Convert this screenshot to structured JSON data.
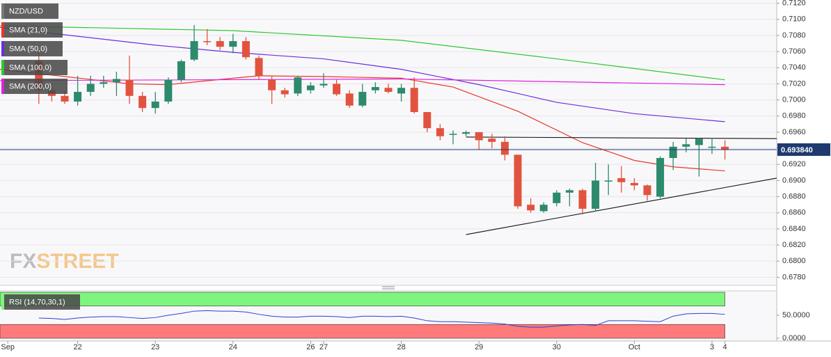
{
  "chart_data": [
    {
      "type": "candlestick",
      "name": "NZD/USD",
      "up_color": "#2d8a6c",
      "down_color": "#e2533f",
      "open": [
        0.7048,
        0.7012,
        0.7005,
        0.6998,
        0.701,
        0.702,
        0.7022,
        0.7025,
        0.7005,
        0.699,
        0.6998,
        0.7025,
        0.705,
        0.7073,
        0.7073,
        0.7066,
        0.7073,
        0.7052,
        0.7025,
        0.7012,
        0.7008,
        0.7012,
        0.7018,
        0.702,
        0.7008,
        0.6993,
        0.7012,
        0.7015,
        0.7008,
        0.7015,
        0.6985,
        0.6965,
        0.6958,
        0.6958,
        0.696,
        0.6952,
        0.6948,
        0.6932,
        0.687,
        0.6862,
        0.6872,
        0.6885,
        0.6888,
        0.6865,
        0.69,
        0.6903,
        0.6897,
        0.6894,
        0.688,
        0.6928,
        0.6942,
        0.6944,
        0.6942,
        0.6942
      ],
      "high": [
        0.706,
        0.702,
        0.7012,
        0.703,
        0.703,
        0.703,
        0.7035,
        0.7055,
        0.701,
        0.701,
        0.7028,
        0.705,
        0.7093,
        0.7088,
        0.7078,
        0.7082,
        0.7078,
        0.7055,
        0.703,
        0.7015,
        0.703,
        0.7022,
        0.7033,
        0.7025,
        0.7012,
        0.702,
        0.7022,
        0.702,
        0.702,
        0.7028,
        0.6985,
        0.697,
        0.6962,
        0.6962,
        0.696,
        0.6958,
        0.6955,
        0.6932,
        0.6878,
        0.6873,
        0.6888,
        0.689,
        0.689,
        0.6922,
        0.692,
        0.6918,
        0.6903,
        0.6895,
        0.693,
        0.6948,
        0.6952,
        0.6953,
        0.6953,
        0.695
      ],
      "low": [
        0.6995,
        0.6998,
        0.6995,
        0.6993,
        0.7005,
        0.7015,
        0.7005,
        0.6995,
        0.6985,
        0.6983,
        0.6995,
        0.7022,
        0.7048,
        0.7068,
        0.7062,
        0.7058,
        0.705,
        0.7025,
        0.6995,
        0.7003,
        0.7005,
        0.7008,
        0.7015,
        0.7005,
        0.699,
        0.6991,
        0.7008,
        0.7008,
        0.6998,
        0.6983,
        0.696,
        0.695,
        0.6945,
        0.6955,
        0.6938,
        0.694,
        0.6925,
        0.6865,
        0.686,
        0.686,
        0.6868,
        0.6868,
        0.6858,
        0.6862,
        0.6882,
        0.6885,
        0.6888,
        0.6875,
        0.6878,
        0.6913,
        0.6935,
        0.6905,
        0.6933,
        0.6926
      ],
      "close": [
        0.7012,
        0.7005,
        0.6998,
        0.701,
        0.702,
        0.7022,
        0.7026,
        0.7005,
        0.699,
        0.6998,
        0.7025,
        0.7048,
        0.7073,
        0.7072,
        0.7066,
        0.7073,
        0.7053,
        0.703,
        0.7012,
        0.7007,
        0.7028,
        0.7018,
        0.702,
        0.7007,
        0.6993,
        0.701,
        0.7016,
        0.701,
        0.7015,
        0.6985,
        0.6965,
        0.6955,
        0.6958,
        0.696,
        0.695,
        0.6948,
        0.6932,
        0.6868,
        0.6863,
        0.687,
        0.6885,
        0.6888,
        0.6865,
        0.69,
        0.69,
        0.6898,
        0.6894,
        0.6882,
        0.6928,
        0.6942,
        0.6945,
        0.6952,
        0.6942,
        0.6938
      ],
      "series": [
        {
          "name": "SMA (21,0)",
          "color": "#e8362a",
          "x": [
            -3,
            2,
            7,
            10,
            15,
            17,
            22,
            28,
            32,
            37,
            42,
            46,
            49,
            53
          ],
          "values": [
            0.7038,
            0.7029,
            0.702,
            0.7019,
            0.7027,
            0.703,
            0.7029,
            0.7027,
            0.7016,
            0.6986,
            0.6947,
            0.6925,
            0.6917,
            0.6912
          ]
        },
        {
          "name": "SMA (50,0)",
          "color": "#6a2ee0",
          "x": [
            -3,
            9,
            15,
            22,
            28,
            34,
            40,
            46,
            53
          ],
          "values": [
            0.709,
            0.7068,
            0.7059,
            0.7051,
            0.7038,
            0.7019,
            0.6997,
            0.6983,
            0.6973
          ]
        },
        {
          "name": "SMA (100,0)",
          "color": "#2ec82e",
          "x": [
            -3,
            15,
            28,
            40,
            53
          ],
          "values": [
            0.7092,
            0.7086,
            0.7074,
            0.7051,
            0.7025
          ]
        },
        {
          "name": "SMA (200,0)",
          "color": "#e020e0",
          "x": [
            -3,
            28,
            53
          ],
          "values": [
            0.7024,
            0.7026,
            0.7019
          ]
        }
      ],
      "trendlines": [
        {
          "x": [
            33,
            57
          ],
          "values": [
            0.6954,
            0.6952
          ]
        },
        {
          "x": [
            33,
            57
          ],
          "values": [
            0.6833,
            0.6903
          ]
        }
      ],
      "last_price": 0.69384,
      "last_price_label": "0.693840",
      "xlim": [
        -3,
        57
      ],
      "ylim": [
        0.677,
        0.7124
      ],
      "xticks": [
        {
          "value": -2.4,
          "label": "Sep"
        },
        {
          "value": 3,
          "label": "22"
        },
        {
          "value": 9,
          "label": "23"
        },
        {
          "value": 15,
          "label": "24"
        },
        {
          "value": 21,
          "label": "26"
        },
        {
          "value": 22,
          "label": "27"
        },
        {
          "value": 28,
          "label": "28"
        },
        {
          "value": 34,
          "label": "29"
        },
        {
          "value": 40,
          "label": "30"
        },
        {
          "value": 46,
          "label": "Oct"
        },
        {
          "value": 52,
          "label": "3"
        },
        {
          "value": 53,
          "label": "4"
        }
      ],
      "yticks": [
        {
          "value": 0.712,
          "label": "0.7120"
        },
        {
          "value": 0.71,
          "label": "0.7100"
        },
        {
          "value": 0.708,
          "label": "0.7080"
        },
        {
          "value": 0.706,
          "label": "0.7060"
        },
        {
          "value": 0.704,
          "label": "0.7040"
        },
        {
          "value": 0.702,
          "label": "0.7020"
        },
        {
          "value": 0.7,
          "label": "0.7000"
        },
        {
          "value": 0.698,
          "label": "0.6980"
        },
        {
          "value": 0.696,
          "label": "0.6960"
        },
        {
          "value": 0.694,
          "label": "0.6940"
        },
        {
          "value": 0.692,
          "label": "0.6920"
        },
        {
          "value": 0.69,
          "label": "0.6900"
        },
        {
          "value": 0.688,
          "label": "0.6880"
        },
        {
          "value": 0.686,
          "label": "0.6860"
        },
        {
          "value": 0.684,
          "label": "0.6840"
        },
        {
          "value": 0.682,
          "label": "0.6820"
        },
        {
          "value": 0.68,
          "label": "0.6800"
        },
        {
          "value": 0.678,
          "label": "0.6780"
        }
      ],
      "grid": true,
      "watermark": {
        "prefix": "FX",
        "suffix": "STREET"
      }
    },
    {
      "type": "line",
      "name": "RSI (14,70,30,1)",
      "color": "#2a3fd6",
      "values": [
        44,
        43,
        41,
        44,
        46,
        47,
        47,
        45,
        43,
        45,
        50,
        54,
        59,
        60,
        59,
        59,
        57,
        52,
        48,
        46,
        46,
        48,
        48,
        47,
        45,
        48,
        48,
        47,
        48,
        44,
        38,
        36,
        36,
        35,
        34,
        33,
        31,
        26,
        24,
        24,
        27,
        29,
        30,
        28,
        38,
        38,
        38,
        37,
        36,
        48,
        53,
        54,
        54,
        52
      ],
      "bands": [
        {
          "from": 70,
          "to": 100,
          "color": "#7ef57e"
        },
        {
          "from": 0,
          "to": 30,
          "color": "#ff7b7b"
        }
      ],
      "ylim": [
        -6,
        103
      ],
      "yticks": [
        {
          "value": 50,
          "label": "50.0000"
        },
        {
          "value": 0,
          "label": "0.0000"
        }
      ]
    }
  ]
}
